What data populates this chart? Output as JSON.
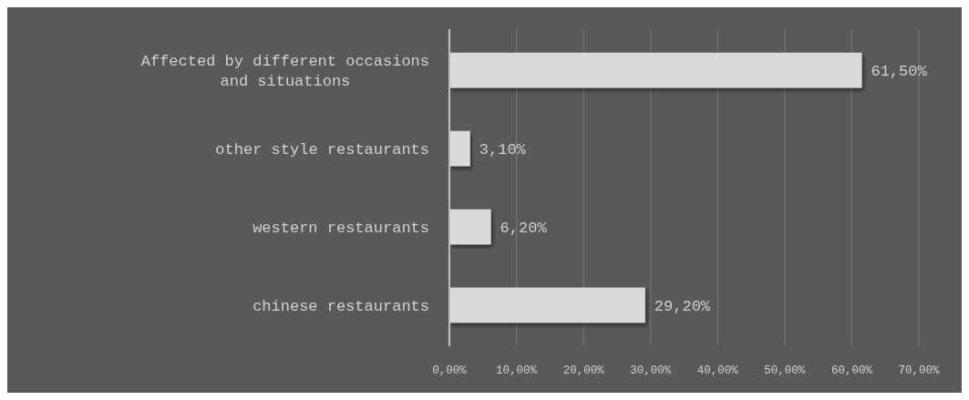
{
  "chart_data": {
    "type": "bar",
    "orientation": "horizontal",
    "categories": [
      "Affected by different occasions and situations",
      "other style restaurants",
      "western restaurants",
      "chinese restaurants"
    ],
    "values": [
      61.5,
      3.1,
      6.2,
      29.2
    ],
    "value_labels": [
      "61,50%",
      "3,10%",
      "6,20%",
      "29,20%"
    ],
    "color": "#d9d9d9",
    "xlim": [
      0,
      70
    ],
    "xticks": [
      {
        "value": 0,
        "label": "0,00%"
      },
      {
        "value": 10,
        "label": "10,00%"
      },
      {
        "value": 20,
        "label": "20,00%"
      },
      {
        "value": 30,
        "label": "30,00%"
      },
      {
        "value": 40,
        "label": "40,00%"
      },
      {
        "value": 50,
        "label": "50,00%"
      },
      {
        "value": 60,
        "label": "60,00%"
      },
      {
        "value": 70,
        "label": "70,00%"
      }
    ],
    "grid": "x"
  }
}
